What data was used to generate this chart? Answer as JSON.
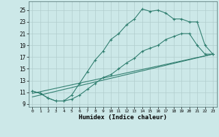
{
  "xlabel": "Humidex (Indice chaleur)",
  "bg_color": "#cce8e8",
  "grid_color": "#b8d8d8",
  "line_color": "#2e7d6e",
  "xlim": [
    -0.5,
    23.5
  ],
  "ylim": [
    8.5,
    26.5
  ],
  "xticks": [
    0,
    1,
    2,
    3,
    4,
    5,
    6,
    7,
    8,
    9,
    10,
    11,
    12,
    13,
    14,
    15,
    16,
    17,
    18,
    19,
    20,
    21,
    22,
    23
  ],
  "yticks": [
    9,
    11,
    13,
    15,
    17,
    19,
    21,
    23,
    25
  ],
  "line1_x": [
    0,
    1,
    2,
    3,
    4,
    5,
    6,
    7,
    8,
    9,
    10,
    11,
    12,
    13,
    14,
    15,
    16,
    17,
    18,
    19,
    20,
    21,
    22,
    23
  ],
  "line1_y": [
    11.2,
    10.8,
    10.0,
    9.5,
    9.5,
    10.5,
    12.5,
    14.5,
    16.5,
    18.0,
    20.0,
    21.0,
    22.5,
    23.5,
    25.2,
    24.8,
    25.0,
    24.5,
    23.5,
    23.5,
    23.0,
    23.0,
    19.0,
    17.5
  ],
  "line2_x": [
    0,
    1,
    2,
    3,
    4,
    5,
    6,
    7,
    8,
    9,
    10,
    11,
    12,
    13,
    14,
    15,
    16,
    17,
    18,
    19,
    20,
    21,
    22,
    23
  ],
  "line2_y": [
    11.2,
    10.8,
    10.0,
    9.5,
    9.5,
    9.8,
    10.5,
    11.5,
    12.5,
    13.5,
    14.0,
    15.0,
    16.0,
    16.8,
    18.0,
    18.5,
    19.0,
    20.0,
    20.5,
    21.0,
    21.0,
    19.0,
    17.5,
    17.5
  ],
  "line3_x": [
    0,
    23
  ],
  "line3_y": [
    10.8,
    17.5
  ],
  "line4_x": [
    0,
    23
  ],
  "line4_y": [
    10.2,
    17.5
  ]
}
